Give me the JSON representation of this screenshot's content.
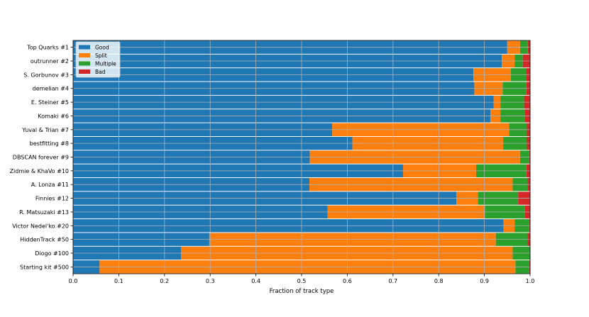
{
  "chart_data": {
    "type": "bar",
    "orientation": "horizontal",
    "stacked": true,
    "title": "",
    "xlabel": "Fraction of track type",
    "ylabel": "",
    "xlim": [
      0.0,
      1.0
    ],
    "xticks": [
      "0.0",
      "0.1",
      "0.2",
      "0.3",
      "0.4",
      "0.5",
      "0.6",
      "0.7",
      "0.8",
      "0.9",
      "1.0"
    ],
    "grid": true,
    "legend_position": "top-left",
    "categories": [
      "Top Quarks #1",
      "outrunner #2",
      "S. Gorbunov #3",
      "demelian #4",
      "E. Steiner #5",
      "Komaki #6",
      "Yuval & Trian #7",
      "bestfitting #8",
      "DBSCAN forever #9",
      "Zidmie & KhaVo #10",
      "A. Lonza #11",
      "Finnies #12",
      "R. Matsuzaki #13",
      "Victor Nedel'ko #20",
      "HiddenTrack #50",
      "Diogo #100",
      "Starting kit #500"
    ],
    "series": [
      {
        "name": "Good",
        "color": "#1f77b4",
        "values": [
          0.95,
          0.938,
          0.876,
          0.878,
          0.92,
          0.913,
          0.567,
          0.611,
          0.518,
          0.722,
          0.517,
          0.839,
          0.557,
          0.942,
          0.298,
          0.236,
          0.058
        ]
      },
      {
        "name": "Split",
        "color": "#ff7f0e",
        "values": [
          0.028,
          0.028,
          0.082,
          0.062,
          0.015,
          0.022,
          0.387,
          0.33,
          0.46,
          0.16,
          0.445,
          0.047,
          0.344,
          0.024,
          0.627,
          0.726,
          0.91
        ]
      },
      {
        "name": "Multiple",
        "color": "#2ca02c",
        "values": [
          0.017,
          0.018,
          0.033,
          0.052,
          0.052,
          0.053,
          0.039,
          0.052,
          0.02,
          0.11,
          0.032,
          0.088,
          0.088,
          0.032,
          0.069,
          0.038,
          0.03
        ]
      },
      {
        "name": "Bad",
        "color": "#d62728",
        "values": [
          0.005,
          0.016,
          0.009,
          0.008,
          0.013,
          0.012,
          0.007,
          0.007,
          0.002,
          0.008,
          0.006,
          0.026,
          0.011,
          0.002,
          0.006,
          0.0,
          0.002
        ]
      }
    ]
  }
}
